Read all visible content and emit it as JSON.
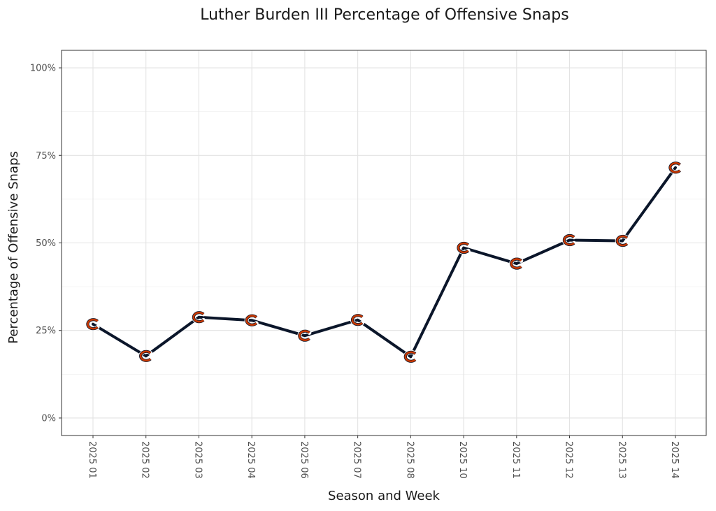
{
  "chart_data": {
    "type": "line",
    "title": "Luther Burden III Percentage of Offensive Snaps",
    "xlabel": "Season and Week",
    "ylabel": "Percentage of Offensive Snaps",
    "categories": [
      "2025 01",
      "2025 02",
      "2025 03",
      "2025 04",
      "2025 06",
      "2025 07",
      "2025 08",
      "2025 10",
      "2025 11",
      "2025 12",
      "2025 13",
      "2025 14"
    ],
    "series": [
      {
        "values": [
          0.268,
          0.177,
          0.288,
          0.279,
          0.235,
          0.28,
          0.175,
          0.486,
          0.441,
          0.508,
          0.506,
          0.715
        ]
      }
    ],
    "ylim": [
      -0.05,
      1.05
    ],
    "yticks": [
      0,
      0.25,
      0.5,
      0.75,
      1.0
    ],
    "ytick_labels": [
      "0%",
      "25%",
      "50%",
      "75%",
      "100%"
    ],
    "grid": true,
    "line_color": "#0b162a",
    "marker_icon": "bears-c-logo-icon",
    "marker_colors": {
      "orange": "#c83803",
      "navy": "#0b162a"
    }
  }
}
